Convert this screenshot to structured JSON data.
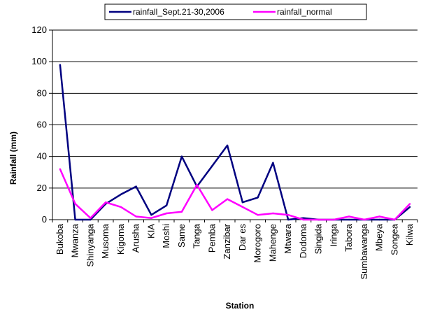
{
  "chart_data": {
    "type": "line",
    "xlabel": "Station",
    "ylabel": "Rainfall (mm)",
    "ylim": [
      0,
      120
    ],
    "yticks": [
      0,
      20,
      40,
      60,
      80,
      100,
      120
    ],
    "grid": true,
    "legend_position": "top",
    "categories": [
      "Bukoba",
      "Mwanza",
      "Shinyanga",
      "Musoma",
      "Kigoma",
      "Arusha",
      "KIA",
      "Moshi",
      "Same",
      "Tanga",
      "Pemba",
      "Zanzibar",
      "Dar es",
      "Morogoro",
      "Mahenge",
      "Mtwara",
      "Dodoma",
      "Singida",
      "Iringa",
      "Tabora",
      "Sumbawanga",
      "Mbeya",
      "Songea",
      "Kilwa"
    ],
    "series": [
      {
        "name": "rainfall_Sept.21-30,2006",
        "color": "#000080",
        "values": [
          98,
          0,
          0,
          10,
          16,
          21,
          3,
          9,
          40,
          21,
          34,
          47,
          11,
          14,
          36,
          0,
          1,
          0,
          0,
          0,
          0,
          0,
          0,
          8
        ]
      },
      {
        "name": "rainfall_normal",
        "color": "#ff00ff",
        "values": [
          32,
          10,
          1,
          11,
          8,
          2,
          1,
          4,
          5,
          22,
          6,
          13,
          8,
          3,
          4,
          3,
          0,
          0,
          0,
          2,
          0,
          2,
          0,
          10
        ]
      }
    ]
  }
}
